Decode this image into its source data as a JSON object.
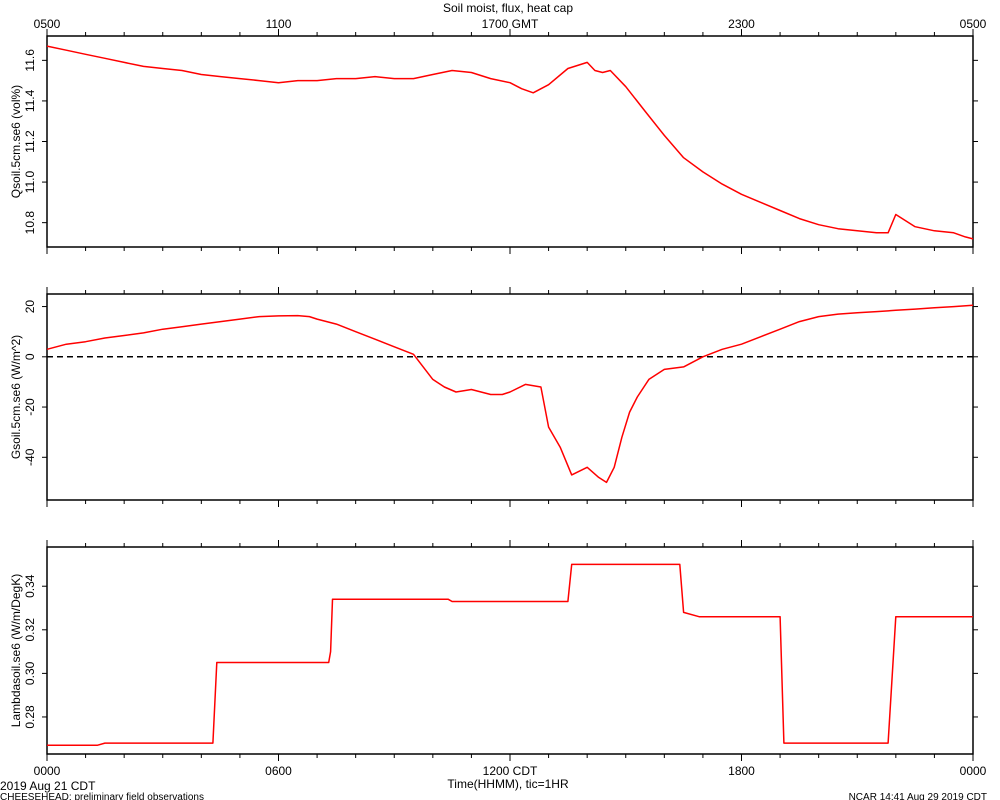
{
  "title": "Soil moist, flux, heat cap",
  "top_axis": {
    "labels": [
      "0500",
      "1100",
      "1700 GMT",
      "2300",
      "0500"
    ]
  },
  "bottom_axis": {
    "labels": [
      "0000",
      "0600",
      "1200 CDT",
      "1800",
      "0000"
    ],
    "xlabel": "Time(HHMM), tic=1HR"
  },
  "footer": {
    "date": "2019 Aug 21 CDT",
    "project": "CHEESEHEAD: preliminary field observations",
    "stamp": "NCAR 14:41 Aug 29 2019 CDT"
  },
  "colors": {
    "series": "#ff0000",
    "axes": "#000000",
    "zero_line": "#000000"
  },
  "chart_data": [
    {
      "type": "line",
      "ylabel": "Qsoil.5cm.se6 (vol%)",
      "xlim": [
        0,
        24
      ],
      "ylim": [
        10.68,
        11.72
      ],
      "yticks": [
        10.8,
        11.0,
        11.2,
        11.4,
        11.6
      ],
      "ytick_labels": [
        "10.8",
        "11.0",
        "11.2",
        "11.4",
        "11.6"
      ],
      "x": [
        0,
        0.5,
        1,
        1.5,
        2,
        2.5,
        3,
        3.5,
        4,
        4.5,
        5,
        5.5,
        6,
        6.5,
        7,
        7.5,
        8,
        8.5,
        9,
        9.5,
        10,
        10.5,
        11,
        11.5,
        12,
        12.3,
        12.6,
        13,
        13.5,
        14,
        14.2,
        14.4,
        14.6,
        15,
        15.5,
        16,
        16.5,
        17,
        17.5,
        18,
        18.5,
        19,
        19.5,
        20,
        20.5,
        21,
        21.5,
        21.8,
        22,
        22.5,
        23,
        23.5,
        23.8,
        24
      ],
      "y": [
        11.67,
        11.65,
        11.63,
        11.61,
        11.59,
        11.57,
        11.56,
        11.55,
        11.53,
        11.52,
        11.51,
        11.5,
        11.49,
        11.5,
        11.5,
        11.51,
        11.51,
        11.52,
        11.51,
        11.51,
        11.53,
        11.55,
        11.54,
        11.51,
        11.49,
        11.46,
        11.44,
        11.48,
        11.56,
        11.59,
        11.55,
        11.54,
        11.55,
        11.47,
        11.35,
        11.23,
        11.12,
        11.05,
        10.99,
        10.94,
        10.9,
        10.86,
        10.82,
        10.79,
        10.77,
        10.76,
        10.75,
        10.75,
        10.84,
        10.78,
        10.76,
        10.75,
        10.73,
        10.72
      ],
      "grid": false
    },
    {
      "type": "line",
      "ylabel": "Gsoil.5cm.se6 (W/m^2)",
      "xlim": [
        0,
        24
      ],
      "ylim": [
        -57,
        25
      ],
      "yticks": [
        -40,
        -20,
        0,
        20
      ],
      "ytick_labels": [
        "-40",
        "-20",
        "0",
        "20"
      ],
      "zero_line": true,
      "x": [
        0,
        0.5,
        1,
        1.5,
        2,
        2.5,
        3,
        3.5,
        4,
        4.5,
        5,
        5.5,
        6,
        6.5,
        6.8,
        7,
        7.5,
        8,
        8.5,
        9,
        9.5,
        10,
        10.3,
        10.6,
        11,
        11.5,
        11.8,
        12,
        12.4,
        12.8,
        13,
        13.3,
        13.6,
        14,
        14.3,
        14.5,
        14.7,
        14.9,
        15.1,
        15.3,
        15.6,
        16,
        16.5,
        17,
        17.5,
        18,
        18.5,
        19,
        19.5,
        20,
        20.5,
        21,
        21.5,
        22,
        22.5,
        23,
        23.5,
        24
      ],
      "y": [
        3,
        5,
        6,
        7.5,
        8.5,
        9.5,
        11,
        12,
        13,
        14,
        15,
        16,
        16.3,
        16.4,
        16,
        15,
        13,
        10,
        7,
        4,
        1,
        -9,
        -12,
        -14,
        -13,
        -15,
        -15,
        -14,
        -11,
        -12,
        -28,
        -36,
        -47,
        -44,
        -48,
        -50,
        -44,
        -32,
        -22,
        -16,
        -9,
        -5,
        -4,
        0,
        3,
        5,
        8,
        11,
        14,
        16,
        17,
        17.5,
        18,
        18.5,
        19,
        19.5,
        20,
        20.5
      ],
      "grid": false
    },
    {
      "type": "line",
      "ylabel": "Lambdasoil.se6 (W/m/DegK)",
      "xlim": [
        0,
        24
      ],
      "ylim": [
        0.263,
        0.358
      ],
      "yticks": [
        0.28,
        0.3,
        0.32,
        0.34
      ],
      "ytick_labels": [
        "0.28",
        "0.30",
        "0.32",
        "0.34"
      ],
      "x": [
        0,
        1.3,
        1.5,
        4.3,
        4.4,
        7.3,
        7.35,
        7.4,
        10.4,
        10.5,
        13.5,
        13.6,
        16.4,
        16.5,
        16.9,
        19,
        19.1,
        20.6,
        21.8,
        22.0,
        24
      ],
      "y": [
        0.267,
        0.267,
        0.268,
        0.268,
        0.305,
        0.305,
        0.31,
        0.334,
        0.334,
        0.333,
        0.333,
        0.35,
        0.35,
        0.328,
        0.326,
        0.326,
        0.268,
        0.268,
        0.268,
        0.326,
        0.326
      ],
      "grid": false
    }
  ]
}
